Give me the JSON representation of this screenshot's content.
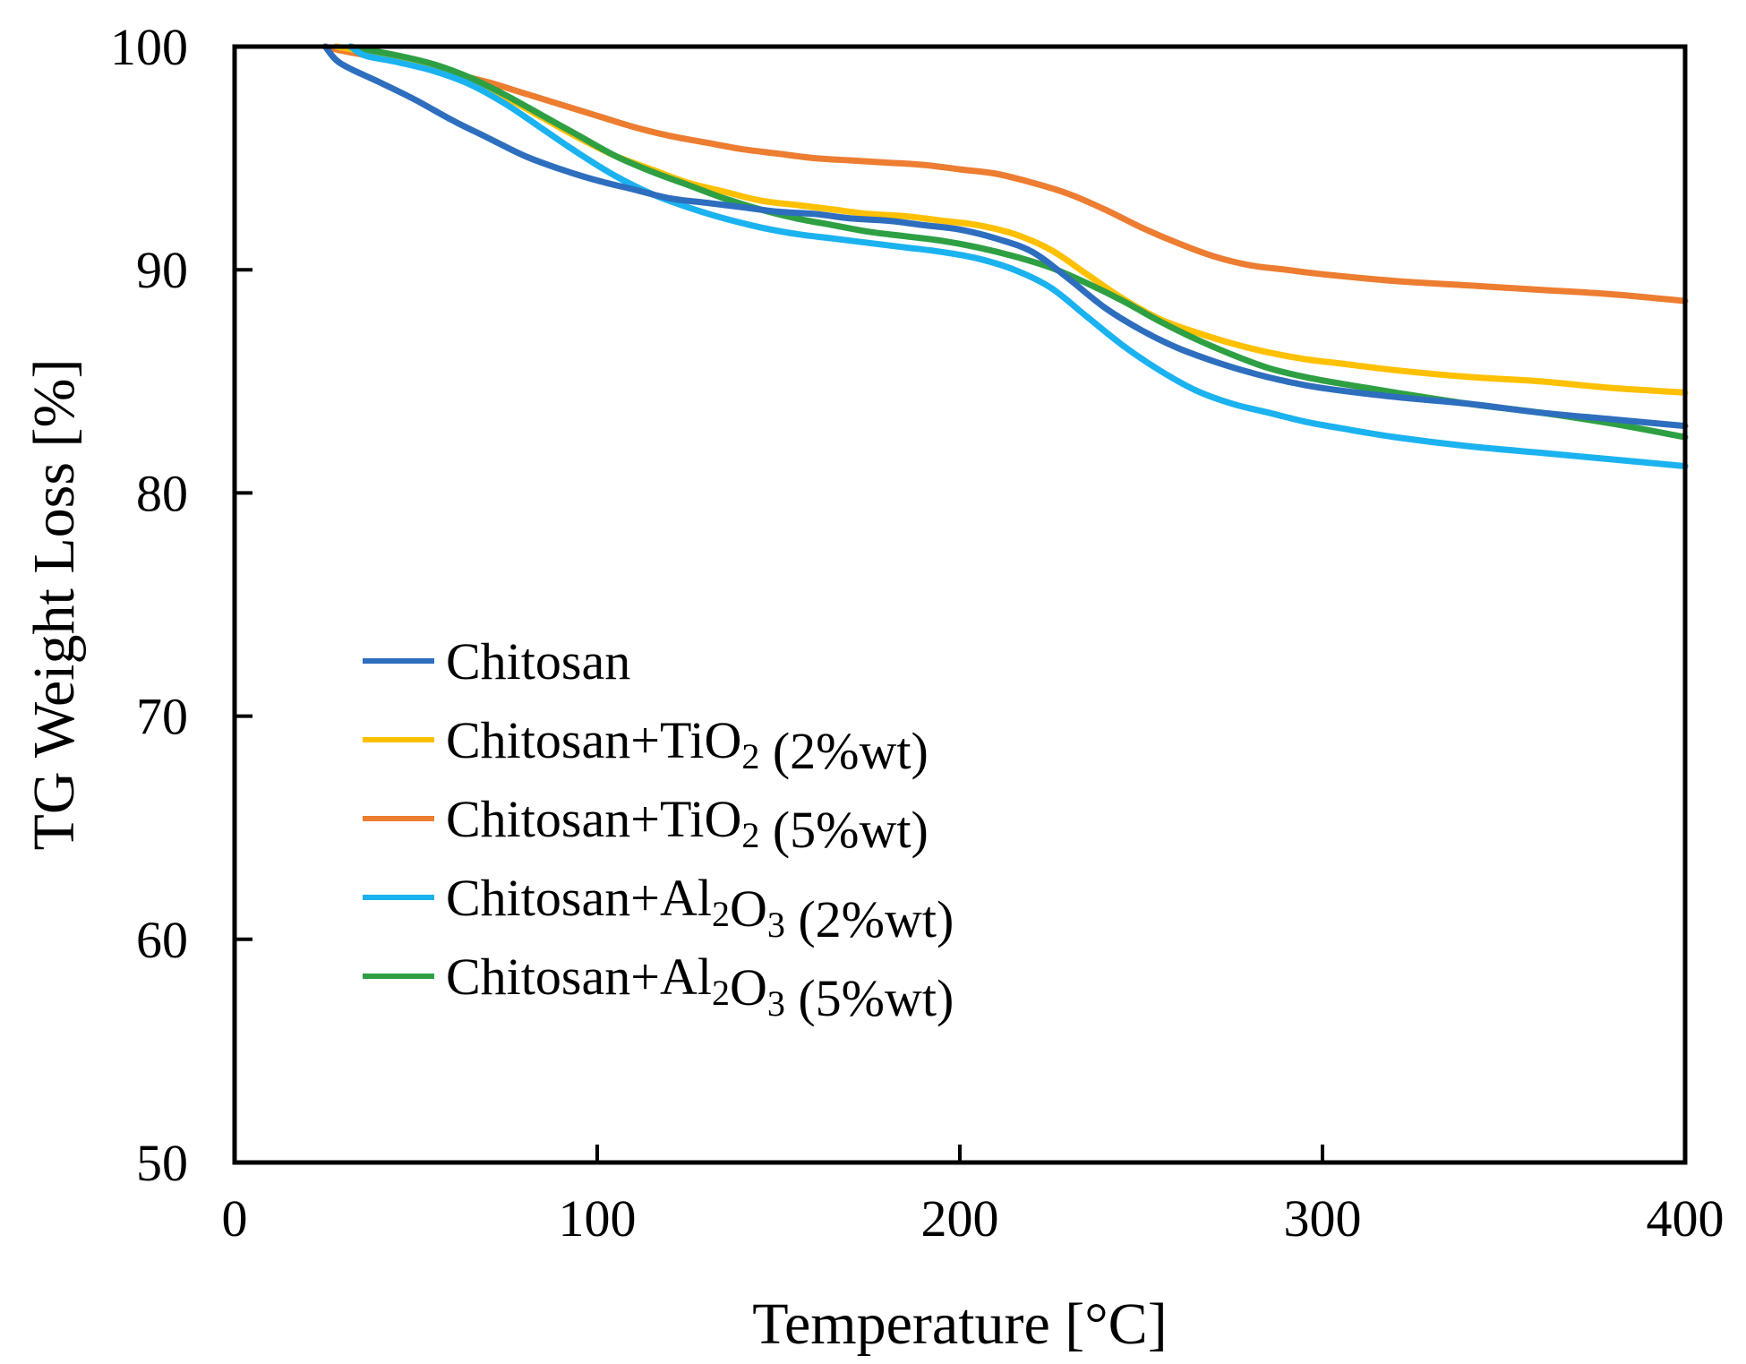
{
  "chart_data": {
    "type": "line",
    "xlabel": "Temperature [°C]",
    "ylabel": "TG Weight Loss [%]",
    "xlim": [
      0,
      400
    ],
    "ylim": [
      50,
      100
    ],
    "xticks": [
      0,
      100,
      200,
      300,
      400
    ],
    "yticks": [
      50,
      60,
      70,
      80,
      90,
      100
    ],
    "grid": false,
    "legend_position": "lower-left",
    "series": [
      {
        "name": "Chitosan",
        "label_parts": [
          [
            "Chitosan",
            false
          ]
        ],
        "color": "#2E6EBE",
        "x": [
          25,
          28,
          32,
          40,
          50,
          60,
          70,
          80,
          90,
          100,
          110,
          120,
          130,
          140,
          150,
          160,
          170,
          180,
          190,
          200,
          210,
          220,
          230,
          240,
          250,
          260,
          270,
          280,
          290,
          300,
          320,
          340,
          360,
          380,
          400
        ],
        "y": [
          100,
          99.4,
          99.0,
          98.4,
          97.6,
          96.7,
          95.9,
          95.1,
          94.5,
          94.0,
          93.6,
          93.2,
          93.0,
          92.8,
          92.6,
          92.5,
          92.3,
          92.2,
          92.0,
          91.8,
          91.4,
          90.8,
          89.6,
          88.3,
          87.3,
          86.5,
          85.9,
          85.4,
          85.0,
          84.7,
          84.3,
          84.0,
          83.6,
          83.3,
          83.0
        ]
      },
      {
        "name": "Chitosan+TiO2 (2%wt)",
        "label_parts": [
          [
            "Chitosan+TiO",
            false
          ],
          [
            "2",
            true
          ],
          [
            " (2%wt)",
            false
          ]
        ],
        "color": "#FFC000",
        "x": [
          28,
          35,
          45,
          55,
          65,
          75,
          85,
          95,
          105,
          115,
          125,
          135,
          145,
          155,
          165,
          175,
          185,
          195,
          205,
          215,
          225,
          235,
          245,
          255,
          265,
          275,
          285,
          295,
          305,
          320,
          340,
          360,
          380,
          400
        ],
        "y": [
          100,
          99.8,
          99.5,
          99.1,
          98.5,
          97.7,
          96.8,
          95.9,
          95.1,
          94.5,
          93.9,
          93.5,
          93.1,
          92.9,
          92.7,
          92.5,
          92.4,
          92.2,
          92.0,
          91.6,
          90.9,
          89.8,
          88.7,
          87.8,
          87.2,
          86.7,
          86.3,
          86.0,
          85.8,
          85.5,
          85.2,
          85.0,
          84.7,
          84.5
        ]
      },
      {
        "name": "Chitosan+TiO2 (5%wt)",
        "label_parts": [
          [
            "Chitosan+TiO",
            false
          ],
          [
            "2",
            true
          ],
          [
            " (5%wt)",
            false
          ]
        ],
        "color": "#ED7D31",
        "x": [
          25,
          30,
          40,
          50,
          60,
          70,
          80,
          90,
          100,
          110,
          120,
          130,
          140,
          150,
          160,
          170,
          180,
          190,
          200,
          210,
          220,
          230,
          240,
          250,
          260,
          270,
          280,
          290,
          300,
          320,
          340,
          360,
          380,
          400
        ],
        "y": [
          100,
          99.8,
          99.5,
          99.2,
          98.8,
          98.4,
          97.9,
          97.4,
          96.9,
          96.4,
          96.0,
          95.7,
          95.4,
          95.2,
          95.0,
          94.9,
          94.8,
          94.7,
          94.5,
          94.3,
          93.9,
          93.4,
          92.7,
          91.9,
          91.2,
          90.6,
          90.2,
          90.0,
          89.8,
          89.5,
          89.3,
          89.1,
          88.9,
          88.6
        ]
      },
      {
        "name": "Chitosan+Al2O3 (2%wt)",
        "label_parts": [
          [
            "Chitosan+Al",
            false
          ],
          [
            "2",
            true
          ],
          [
            "O",
            false
          ],
          [
            "3",
            true
          ],
          [
            " (2%wt)",
            false
          ]
        ],
        "color": "#1BB2F0",
        "x": [
          32,
          36,
          45,
          55,
          65,
          75,
          85,
          95,
          105,
          115,
          125,
          135,
          145,
          155,
          165,
          175,
          185,
          195,
          205,
          215,
          225,
          235,
          245,
          255,
          265,
          275,
          285,
          295,
          305,
          320,
          340,
          360,
          380,
          400
        ],
        "y": [
          100,
          99.6,
          99.3,
          98.9,
          98.3,
          97.4,
          96.3,
          95.2,
          94.2,
          93.4,
          92.8,
          92.3,
          91.9,
          91.6,
          91.4,
          91.2,
          91.0,
          90.8,
          90.5,
          90.0,
          89.2,
          87.9,
          86.6,
          85.5,
          84.6,
          84.0,
          83.6,
          83.2,
          82.9,
          82.5,
          82.1,
          81.8,
          81.5,
          81.2
        ]
      },
      {
        "name": "Chitosan+Al2O3 (5%wt)",
        "label_parts": [
          [
            "Chitosan+Al",
            false
          ],
          [
            "2",
            true
          ],
          [
            "O",
            false
          ],
          [
            "3",
            true
          ],
          [
            " (5%wt)",
            false
          ]
        ],
        "color": "#2EA043",
        "x": [
          32,
          35,
          45,
          55,
          65,
          75,
          85,
          95,
          105,
          115,
          125,
          135,
          145,
          155,
          165,
          175,
          185,
          195,
          205,
          215,
          225,
          235,
          245,
          255,
          265,
          275,
          285,
          295,
          305,
          320,
          340,
          360,
          380,
          400
        ],
        "y": [
          100,
          99.9,
          99.6,
          99.2,
          98.6,
          97.8,
          96.9,
          96.0,
          95.1,
          94.4,
          93.8,
          93.2,
          92.7,
          92.3,
          92.0,
          91.7,
          91.5,
          91.3,
          91.0,
          90.6,
          90.1,
          89.4,
          88.6,
          87.7,
          86.9,
          86.2,
          85.6,
          85.2,
          84.9,
          84.5,
          84.0,
          83.6,
          83.1,
          82.5
        ]
      }
    ]
  }
}
